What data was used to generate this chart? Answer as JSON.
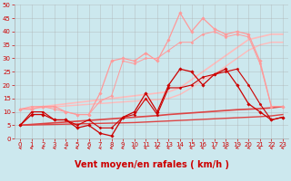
{
  "x": [
    0,
    1,
    2,
    3,
    4,
    5,
    6,
    7,
    8,
    9,
    10,
    11,
    12,
    13,
    14,
    15,
    16,
    17,
    18,
    19,
    20,
    21,
    22,
    23
  ],
  "series": [
    {
      "name": "dark_line1",
      "y": [
        5,
        9,
        9,
        7,
        7,
        4,
        5,
        2,
        1,
        8,
        10,
        17,
        10,
        20,
        26,
        25,
        20,
        24,
        26,
        20,
        13,
        10,
        7,
        8
      ],
      "color": "#cc0000",
      "lw": 0.9,
      "marker": "D",
      "ms": 1.8,
      "zorder": 5
    },
    {
      "name": "dark_line2",
      "y": [
        5,
        10,
        10,
        7,
        7,
        5,
        7,
        4,
        4,
        8,
        9,
        15,
        9,
        19,
        19,
        20,
        23,
        24,
        25,
        26,
        20,
        13,
        7,
        8
      ],
      "color": "#cc0000",
      "lw": 0.8,
      "marker": "D",
      "ms": 1.5,
      "zorder": 4
    },
    {
      "name": "light_line1",
      "y": [
        11,
        11,
        12,
        12,
        10,
        9,
        9,
        17,
        29,
        30,
        29,
        32,
        29,
        37,
        47,
        40,
        45,
        41,
        39,
        40,
        39,
        29,
        12,
        12
      ],
      "color": "#ff9999",
      "lw": 0.9,
      "marker": "D",
      "ms": 1.8,
      "zorder": 3
    },
    {
      "name": "light_line2",
      "y": [
        11,
        12,
        12,
        11,
        10,
        9,
        9,
        14,
        16,
        29,
        28,
        30,
        30,
        33,
        36,
        36,
        39,
        40,
        38,
        39,
        38,
        28,
        12,
        12
      ],
      "color": "#ff9999",
      "lw": 0.7,
      "marker": "D",
      "ms": 1.5,
      "zorder": 2
    },
    {
      "name": "trend_light1",
      "y": [
        11,
        11.5,
        12,
        12.5,
        13,
        13.5,
        14,
        14.5,
        15,
        15.5,
        16,
        16.5,
        17,
        17.5,
        19,
        22,
        25,
        28,
        31,
        34,
        37,
        38,
        39,
        39
      ],
      "color": "#ffbbbb",
      "lw": 1.2,
      "marker": null,
      "ms": 0,
      "zorder": 1
    },
    {
      "name": "trend_light2",
      "y": [
        11,
        11.3,
        11.6,
        11.9,
        12.2,
        12.5,
        12.8,
        13.1,
        13.4,
        13.7,
        14,
        14.3,
        14.6,
        15,
        16.5,
        19,
        22,
        24,
        27,
        30,
        33,
        35,
        36,
        36
      ],
      "color": "#ffbbbb",
      "lw": 1.0,
      "marker": null,
      "ms": 0,
      "zorder": 1
    },
    {
      "name": "trend_dark1",
      "y": [
        5,
        5.3,
        5.6,
        5.9,
        6.2,
        6.5,
        6.8,
        7.1,
        7.4,
        7.7,
        8.0,
        8.3,
        8.6,
        9.0,
        9.3,
        9.6,
        9.9,
        10.2,
        10.5,
        10.8,
        11.0,
        11.2,
        11.5,
        12.0
      ],
      "color": "#dd4444",
      "lw": 1.2,
      "marker": null,
      "ms": 0,
      "zorder": 2
    },
    {
      "name": "trend_dark2",
      "y": [
        5,
        5.1,
        5.2,
        5.3,
        5.4,
        5.5,
        5.6,
        5.7,
        5.8,
        5.9,
        6.0,
        6.2,
        6.4,
        6.6,
        6.8,
        7.0,
        7.2,
        7.4,
        7.6,
        7.8,
        8.0,
        8.2,
        8.5,
        9.0
      ],
      "color": "#dd4444",
      "lw": 1.0,
      "marker": null,
      "ms": 0,
      "zorder": 2
    }
  ],
  "arrow_angles": [
    225,
    240,
    240,
    225,
    270,
    270,
    225,
    225,
    270,
    270,
    270,
    270,
    315,
    270,
    270,
    270,
    270,
    270,
    315,
    315,
    315,
    270,
    225,
    240
  ],
  "xlabel": "Vent moyen/en rafales ( km/h )",
  "xlim": [
    -0.5,
    23.5
  ],
  "ylim": [
    0,
    50
  ],
  "yticks": [
    0,
    5,
    10,
    15,
    20,
    25,
    30,
    35,
    40,
    45,
    50
  ],
  "xticks": [
    0,
    1,
    2,
    3,
    4,
    5,
    6,
    7,
    8,
    9,
    10,
    11,
    12,
    13,
    14,
    15,
    16,
    17,
    18,
    19,
    20,
    21,
    22,
    23
  ],
  "bg_color": "#cce8ee",
  "grid_color": "#aaaaaa",
  "xlabel_color": "#cc0000",
  "xlabel_fontsize": 7,
  "tick_color": "#cc0000",
  "tick_fontsize": 5,
  "arrow_color": "#cc0000"
}
